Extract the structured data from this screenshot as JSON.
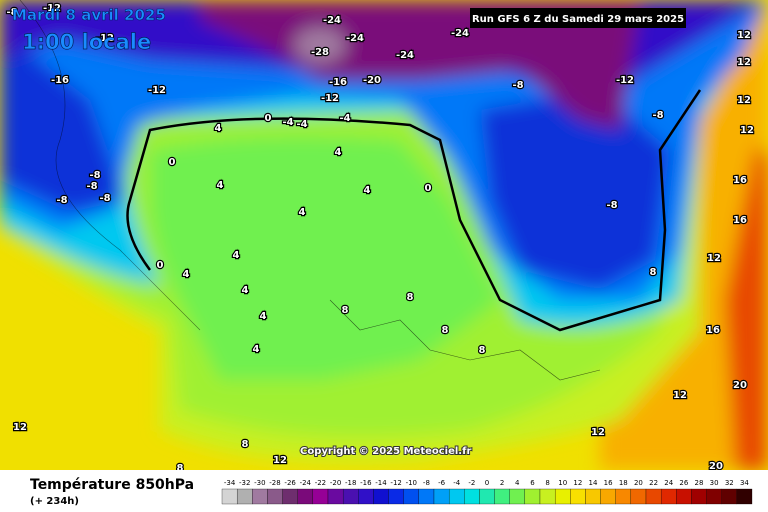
{
  "header": {
    "date": "Mardi 8 avril 2025",
    "time": "1:00 locale",
    "run": "Run GFS 6 Z du Samedi 29 mars 2025"
  },
  "copyright": "Copyright © 2025 Meteociel.fr",
  "footer": {
    "title": "Température 850hPa",
    "lead": "(+ 234h)"
  },
  "legend": {
    "values": [
      -34,
      -32,
      -30,
      -28,
      -26,
      -24,
      -22,
      -20,
      -18,
      -16,
      -14,
      -12,
      -10,
      -8,
      -6,
      -4,
      -2,
      0,
      2,
      4,
      6,
      8,
      10,
      12,
      14,
      16,
      18,
      20,
      22,
      24,
      26,
      28,
      30,
      32,
      34
    ],
    "colors": [
      "#d4d4d4",
      "#b0b0b0",
      "#a07aa0",
      "#8a5a8a",
      "#6e2e6e",
      "#7a0a7a",
      "#960096",
      "#6a0aa0",
      "#4a10b0",
      "#3010c8",
      "#1010d0",
      "#0a2ae6",
      "#0050f0",
      "#0078f8",
      "#00a0f8",
      "#00c8f0",
      "#00e0e0",
      "#20e8b0",
      "#40f080",
      "#70f050",
      "#a0f030",
      "#c8f020",
      "#e8f000",
      "#f8e000",
      "#f8c800",
      "#f8a800",
      "#f88800",
      "#f06800",
      "#e84800",
      "#e02800",
      "#c81000",
      "#a00000",
      "#800000",
      "#600000",
      "#300000"
    ]
  },
  "contour_labels": [
    -8,
    -12,
    -12,
    -16,
    -12,
    -24,
    -24,
    -28,
    -24,
    -24,
    -16,
    -20,
    -12,
    -8,
    -12,
    -8,
    -8,
    -8,
    -8,
    -8,
    -8,
    0,
    0,
    4,
    0,
    -4,
    -4,
    -4,
    4,
    4,
    4,
    4,
    0,
    4,
    4,
    4,
    4,
    4,
    8,
    8,
    8,
    8,
    8,
    8,
    12,
    12,
    12,
    12,
    16,
    16,
    16,
    20,
    20,
    12,
    12,
    12,
    12,
    12,
    8
  ]
}
